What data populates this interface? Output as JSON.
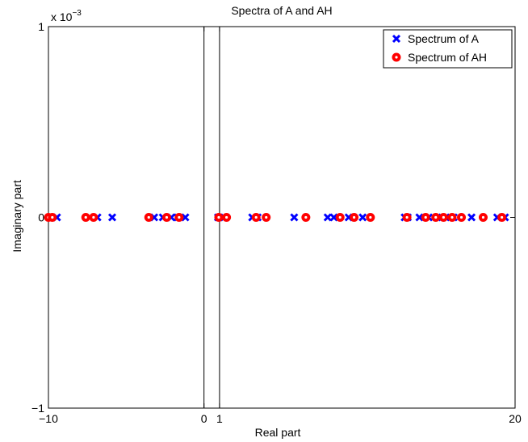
{
  "chart_data": {
    "type": "scatter",
    "title": "Spectra of A and AH",
    "xlabel": "Real part",
    "ylabel": "Imaginary part",
    "xlim": [
      -10,
      20
    ],
    "ylim": [
      -1,
      1
    ],
    "y_exponent_label": "x 10",
    "y_exponent_power": "−3",
    "x_ticks": [
      {
        "value": -10,
        "label": "−10"
      },
      {
        "value": 0,
        "label": "0"
      },
      {
        "value": 1,
        "label": "1"
      },
      {
        "value": 20,
        "label": "20"
      }
    ],
    "y_ticks": [
      {
        "value": 1,
        "label": "1"
      },
      {
        "value": 0,
        "label": "0"
      },
      {
        "value": -1,
        "label": "−1"
      }
    ],
    "vertical_lines": [
      0,
      1
    ],
    "legend_position": "top-right",
    "grid": false,
    "series": [
      {
        "name": "Spectrum of A",
        "marker": "x",
        "color": "#0000ff",
        "x": [
          -9.95,
          -9.8,
          -9.45,
          -7.35,
          -6.85,
          -5.9,
          -3.2,
          -2.65,
          -2.1,
          -1.7,
          -1.2,
          0.9,
          1.3,
          3.1,
          3.45,
          5.8,
          7.95,
          8.35,
          9.3,
          10.2,
          12.9,
          13.1,
          13.85,
          14.45,
          15.0,
          15.55,
          16.05,
          17.2,
          18.85,
          19.35
        ]
      },
      {
        "name": "Spectrum of AH",
        "marker": "o",
        "color": "#ff0000",
        "x": [
          -10.0,
          -9.75,
          -7.6,
          -7.1,
          -3.55,
          -2.4,
          -1.6,
          0.95,
          1.45,
          3.35,
          4.0,
          6.55,
          8.75,
          9.65,
          10.7,
          13.05,
          14.25,
          14.9,
          15.4,
          15.95,
          16.55,
          17.95,
          19.15
        ]
      }
    ]
  }
}
